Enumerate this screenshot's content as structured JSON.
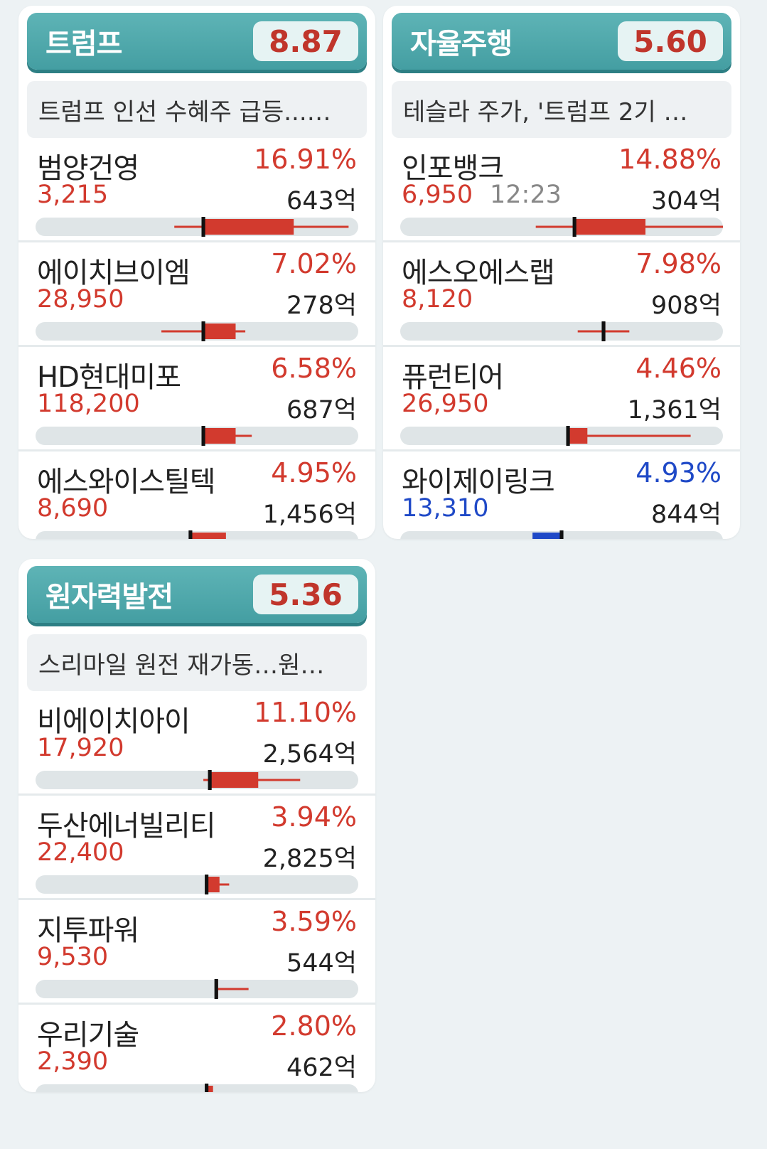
{
  "colors": {
    "up": "#d23a2e",
    "down": "#1f49c7",
    "header": "#4ea9ac"
  },
  "themes": [
    {
      "name": "트럼프",
      "score": "8.87",
      "news": "트럼프 인선 수혜주 급등...…",
      "stocks": [
        {
          "name": "범양건영",
          "rate": "16.91%",
          "price": "3,215",
          "time": "",
          "volume": "643억",
          "dir": "up",
          "candle": {
            "low": 0.43,
            "high": 0.97,
            "open": 0.52,
            "close": 0.8
          }
        },
        {
          "name": "에이치브이엠",
          "rate": "7.02%",
          "price": "28,950",
          "time": "",
          "volume": "278억",
          "dir": "up",
          "candle": {
            "low": 0.39,
            "high": 0.65,
            "open": 0.52,
            "close": 0.62
          }
        },
        {
          "name": "HD현대미포",
          "rate": "6.58%",
          "price": "118,200",
          "time": "",
          "volume": "687억",
          "dir": "up",
          "candle": {
            "low": 0.52,
            "high": 0.67,
            "open": 0.52,
            "close": 0.62
          }
        },
        {
          "name": "에스와이스틸텍",
          "rate": "4.95%",
          "price": "8,690",
          "time": "",
          "volume": "1,456억",
          "dir": "up",
          "candle": {
            "low": 0.38,
            "high": 0.61,
            "open": 0.48,
            "close": 0.59
          }
        }
      ]
    },
    {
      "name": "자율주행",
      "score": "5.60",
      "news": "테슬라 주가, '트럼프 2기 …",
      "stocks": [
        {
          "name": "인포뱅크",
          "rate": "14.88%",
          "price": "6,950",
          "time": "12:23",
          "volume": "304억",
          "dir": "up",
          "candle": {
            "low": 0.42,
            "high": 1.0,
            "open": 0.54,
            "close": 0.76
          }
        },
        {
          "name": "에스오에스랩",
          "rate": "7.98%",
          "price": "8,120",
          "time": "",
          "volume": "908억",
          "dir": "up",
          "candle": {
            "low": 0.55,
            "high": 0.71,
            "open": 0.63,
            "close": 0.63
          }
        },
        {
          "name": "퓨런티어",
          "rate": "4.46%",
          "price": "26,950",
          "time": "",
          "volume": "1,361억",
          "dir": "up",
          "candle": {
            "low": 0.52,
            "high": 0.9,
            "open": 0.52,
            "close": 0.58
          }
        },
        {
          "name": "와이제이링크",
          "rate": "4.93%",
          "price": "13,310",
          "time": "",
          "volume": "844억",
          "dir": "down",
          "candle": {
            "low": 0.4,
            "high": 0.66,
            "open": 0.5,
            "close": 0.41
          }
        }
      ]
    },
    {
      "name": "원자력발전",
      "score": "5.36",
      "news": "스리마일 원전 재가동…원…",
      "stocks": [
        {
          "name": "비에이치아이",
          "rate": "11.10%",
          "price": "17,920",
          "time": "",
          "volume": "2,564억",
          "dir": "up",
          "candle": {
            "low": 0.52,
            "high": 0.82,
            "open": 0.54,
            "close": 0.69
          }
        },
        {
          "name": "두산에너빌리티",
          "rate": "3.94%",
          "price": "22,400",
          "time": "",
          "volume": "2,825억",
          "dir": "up",
          "candle": {
            "low": 0.53,
            "high": 0.6,
            "open": 0.53,
            "close": 0.57
          }
        },
        {
          "name": "지투파워",
          "rate": "3.59%",
          "price": "9,530",
          "time": "",
          "volume": "544억",
          "dir": "up",
          "candle": {
            "low": 0.56,
            "high": 0.66,
            "open": 0.56,
            "close": 0.56
          }
        },
        {
          "name": "우리기술",
          "rate": "2.80%",
          "price": "2,390",
          "time": "",
          "volume": "462억",
          "dir": "up",
          "candle": {
            "low": 0.53,
            "high": 0.58,
            "open": 0.53,
            "close": 0.55
          }
        }
      ]
    }
  ]
}
